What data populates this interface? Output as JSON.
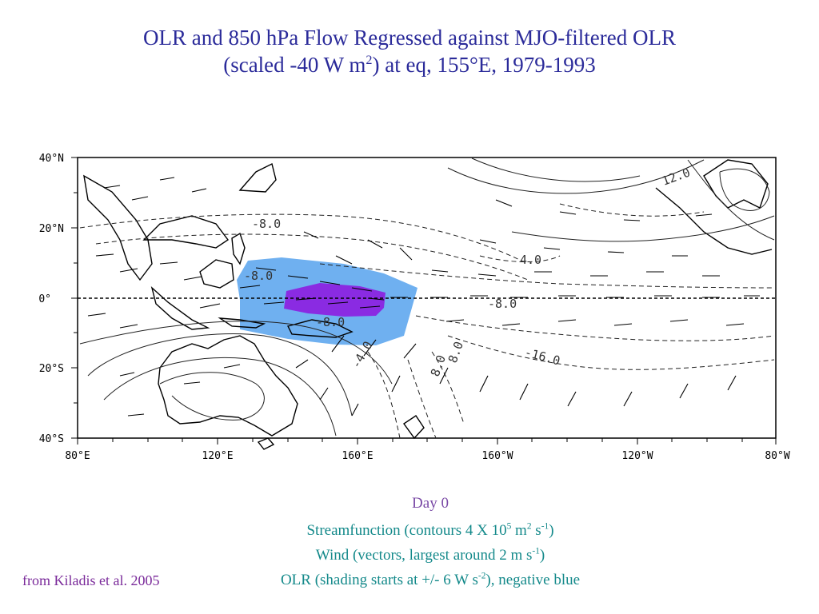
{
  "title": {
    "line1": "OLR and 850 hPa Flow Regressed against MJO-filtered OLR",
    "line2_pre": "(scaled -40 W m",
    "line2_sup": "2",
    "line2_post": ") at eq, 155°E, 1979-1993"
  },
  "map": {
    "x_ticks": [
      "80°E",
      "120°E",
      "160°E",
      "160°W",
      "120°W",
      "80°W"
    ],
    "y_ticks": [
      "40°N",
      "20°N",
      "0°",
      "20°S",
      "40°S"
    ],
    "contour_labels": [
      "-8.0",
      "12.0",
      "4.0",
      "-8.0",
      "-16.0",
      "8.0",
      "-4.0",
      "-8.0",
      "-8.0",
      "8.0"
    ],
    "shading_colors": {
      "weak_negative": "#6fb0f0",
      "strong_negative": "#8a2be2"
    }
  },
  "captions": {
    "day": "Day 0",
    "stream_pre": "Streamfunction (contours 4 X 10",
    "stream_sup1": "5",
    "stream_mid": " m",
    "stream_sup2": "2",
    "stream_mid2": " s",
    "stream_sup3": "-1",
    "stream_post": ")",
    "wind_pre": "Wind (vectors, largest around 2 m s",
    "wind_sup": "-1",
    "wind_post": ")",
    "olr_pre": "OLR (shading starts at +/- 6 W s",
    "olr_sup": "-2",
    "olr_post": "), negative blue"
  },
  "credit": "from Kiladis et al. 2005"
}
